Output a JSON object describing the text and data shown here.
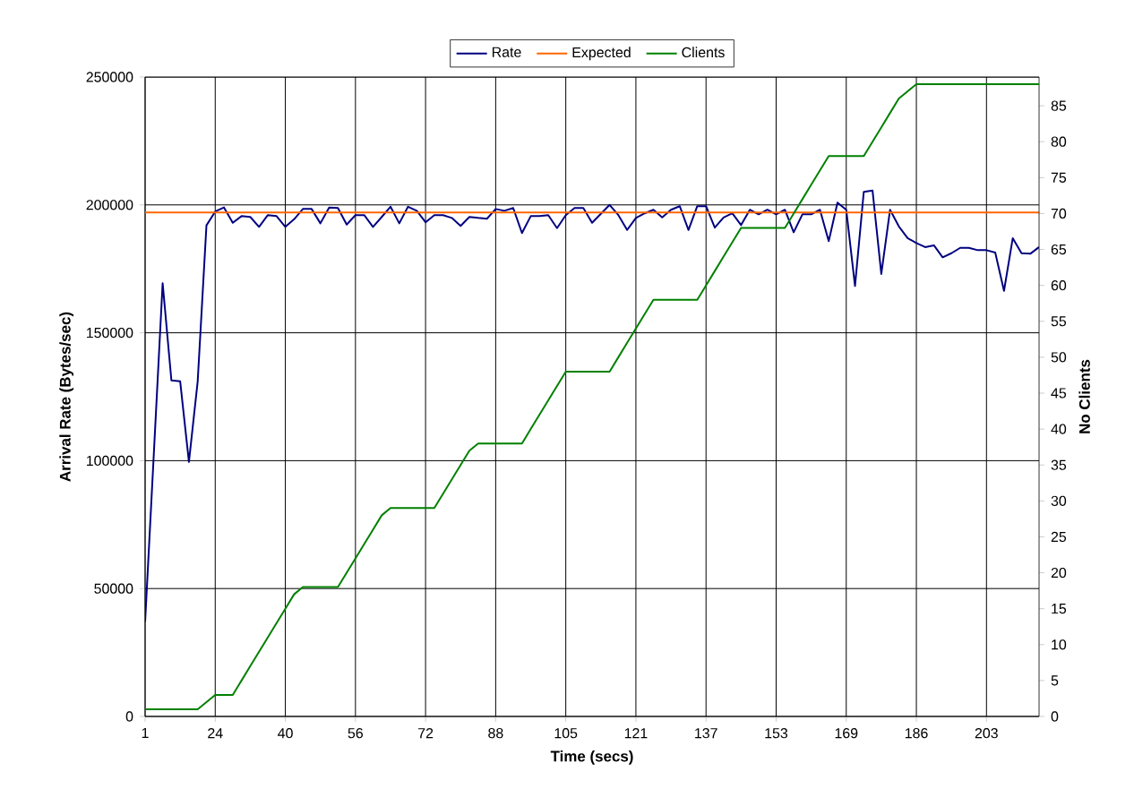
{
  "chart_data": {
    "type": "line",
    "xlabel": "Time (secs)",
    "ylabel": "Arrival Rate (Bytes/sec)",
    "y2label": "No Clients",
    "categories": [
      "1",
      null,
      null,
      null,
      null,
      null,
      null,
      null,
      "24",
      null,
      null,
      null,
      null,
      null,
      null,
      null,
      "40",
      null,
      null,
      null,
      null,
      null,
      null,
      null,
      "56",
      null,
      null,
      null,
      null,
      null,
      null,
      null,
      "72",
      null,
      null,
      null,
      null,
      null,
      null,
      null,
      "88",
      null,
      null,
      null,
      null,
      null,
      null,
      null,
      "105",
      null,
      null,
      null,
      null,
      null,
      null,
      null,
      "121",
      null,
      null,
      null,
      null,
      null,
      null,
      null,
      "137",
      null,
      null,
      null,
      null,
      null,
      null,
      null,
      "153",
      null,
      null,
      null,
      null,
      null,
      null,
      null,
      "169",
      null,
      null,
      null,
      null,
      null,
      null,
      null,
      "186",
      null,
      null,
      null,
      null,
      null,
      null,
      null,
      "203",
      null,
      null,
      null,
      null,
      null,
      null
    ],
    "ylim": [
      0,
      250000
    ],
    "yticks": [
      0,
      50000,
      100000,
      150000,
      200000,
      250000
    ],
    "y2lim": [
      0,
      89
    ],
    "y2ticks": [
      0,
      5,
      10,
      15,
      20,
      25,
      30,
      35,
      40,
      45,
      50,
      55,
      60,
      65,
      70,
      75,
      80,
      85
    ],
    "grid": true,
    "legend": "top",
    "series": [
      {
        "name": "Rate",
        "color": "#000080",
        "values": [
          37000,
          103000,
          169400,
          131400,
          131000,
          99500,
          131000,
          192000,
          197400,
          199000,
          193000,
          195600,
          195300,
          191400,
          196000,
          195600,
          191400,
          194400,
          198400,
          198400,
          192800,
          199000,
          198800,
          192300,
          196000,
          196000,
          191400,
          195300,
          199300,
          192800,
          199300,
          197700,
          193200,
          196000,
          196000,
          194900,
          191800,
          195300,
          194900,
          194600,
          198400,
          197700,
          198800,
          189000,
          195600,
          195600,
          196000,
          190900,
          196000,
          198800,
          198800,
          193000,
          196500,
          200000,
          196000,
          190200,
          194900,
          196700,
          198100,
          195100,
          198100,
          199500,
          190200,
          199500,
          199500,
          191100,
          195100,
          196700,
          192100,
          198100,
          196300,
          198100,
          196300,
          198100,
          189300,
          196300,
          196300,
          198100,
          185800,
          200900,
          198100,
          168300,
          205100,
          205600,
          173000,
          198100,
          191600,
          187000,
          185100,
          183500,
          184200,
          179500,
          181100,
          183200,
          183200,
          182300,
          182300,
          181400,
          166400,
          187000,
          181100,
          180900,
          183500
        ]
      },
      {
        "name": "Expected",
        "color": "#ff6600",
        "values": [
          197000,
          197000,
          197000,
          197000,
          197000,
          197000,
          197000,
          197000,
          197000,
          197000,
          197000,
          197000,
          197000,
          197000,
          197000,
          197000,
          197000,
          197000,
          197000,
          197000,
          197000,
          197000,
          197000,
          197000,
          197000,
          197000,
          197000,
          197000,
          197000,
          197000,
          197000,
          197000,
          197000,
          197000,
          197000,
          197000,
          197000,
          197000,
          197000,
          197000,
          197000,
          197000,
          197000,
          197000,
          197000,
          197000,
          197000,
          197000,
          197000,
          197000,
          197000,
          197000,
          197000,
          197000,
          197000,
          197000,
          197000,
          197000,
          197000,
          197000,
          197000,
          197000,
          197000,
          197000,
          197000,
          197000,
          197000,
          197000,
          197000,
          197000,
          197000,
          197000,
          197000,
          197000,
          197000,
          197000,
          197000,
          197000,
          197000,
          197000,
          197000,
          197000,
          197000,
          197000,
          197000,
          197000,
          197000,
          197000,
          197000,
          197000,
          197000,
          197000,
          197000,
          197000,
          197000,
          197000,
          197000,
          197000,
          197000,
          197000,
          197000,
          197000,
          197000
        ]
      },
      {
        "name": "Clients",
        "color": "#008000",
        "axis": "y2",
        "values": [
          1,
          1,
          1,
          1,
          1,
          1,
          1,
          2,
          3,
          3,
          3,
          5,
          7,
          9,
          11,
          13,
          15,
          17,
          18,
          18,
          18,
          18,
          18,
          20,
          22,
          24,
          26,
          28,
          29,
          29,
          29,
          29,
          29,
          29,
          31,
          33,
          35,
          37,
          38,
          38,
          38,
          38,
          38,
          38,
          40,
          42,
          44,
          46,
          48,
          48,
          48,
          48,
          48,
          48,
          50,
          52,
          54,
          56,
          58,
          58,
          58,
          58,
          58,
          58,
          60,
          62,
          64,
          66,
          68,
          68,
          68,
          68,
          68,
          68,
          70,
          72,
          74,
          76,
          78,
          78,
          78,
          78,
          78,
          80,
          82,
          84,
          86,
          87,
          88,
          88,
          88,
          88,
          88,
          88,
          88,
          88,
          88,
          88,
          88,
          88,
          88,
          88,
          88
        ]
      }
    ]
  }
}
